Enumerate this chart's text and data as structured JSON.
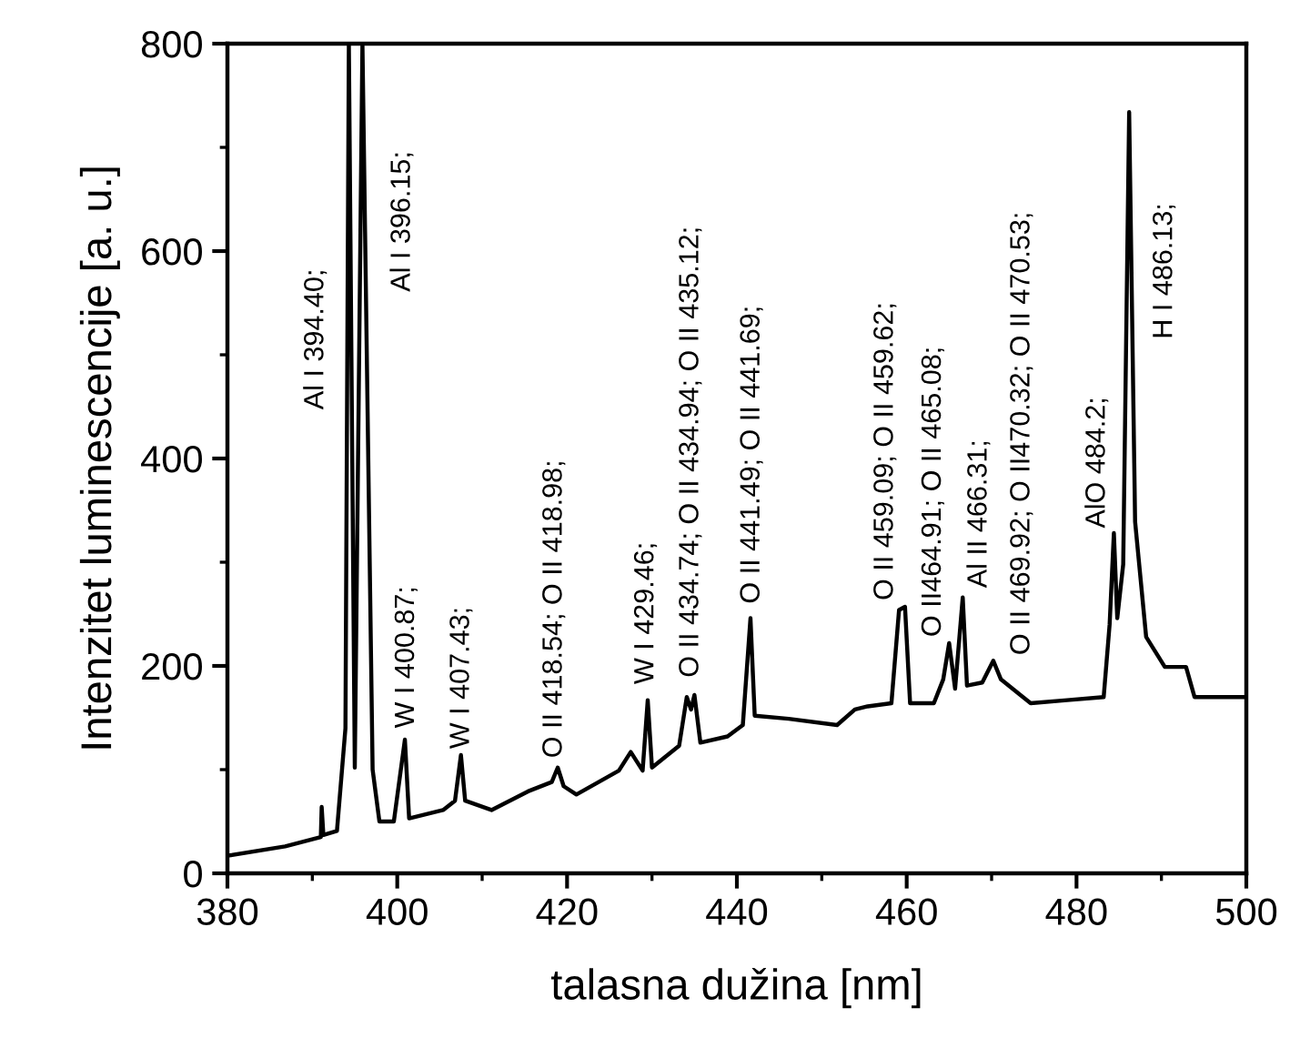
{
  "chart_data": {
    "type": "line",
    "xlabel": "talasna dužina [nm]",
    "ylabel": "Intenzitet luminescencije [a. u.]",
    "xlim": [
      380,
      500
    ],
    "xticks": [
      380,
      400,
      420,
      440,
      460,
      480,
      500
    ],
    "ylim": [
      0,
      800
    ],
    "yticks": [
      0,
      200,
      400,
      600,
      800
    ],
    "grid": false,
    "legend": false,
    "marker": "none",
    "line_style": "solid",
    "series": [
      {
        "color": "#000000",
        "x": [
          380,
          386.8,
          391.0,
          391.1,
          391.3,
          392.9,
          393.9,
          394.3,
          395.0,
          395.9,
          397.1,
          397.9,
          399.6,
          400.9,
          401.4,
          405.4,
          406.8,
          407.5,
          408.0,
          411.1,
          415.4,
          418.2,
          418.9,
          419.6,
          421.1,
          426.1,
          427.5,
          428.9,
          429.5,
          430.0,
          433.2,
          434.1,
          434.6,
          435.0,
          435.7,
          438.9,
          440.7,
          441.6,
          442.1,
          446.1,
          451.8,
          453.9,
          455.4,
          458.2,
          459.1,
          459.8,
          460.4,
          463.2,
          464.3,
          465.0,
          465.7,
          466.6,
          467.1,
          468.9,
          470.2,
          471.1,
          474.6,
          478.9,
          483.2,
          483.9,
          484.4,
          484.8,
          485.5,
          486.2,
          486.9,
          488.2,
          490.4,
          492.9,
          493.9,
          500
        ],
        "values": [
          17,
          26,
          35,
          64,
          37,
          41,
          140,
          800,
          102,
          800,
          100,
          50,
          50,
          129,
          53,
          61,
          70,
          114,
          70,
          61,
          79,
          88,
          102,
          84,
          76,
          99,
          117,
          99,
          167,
          102,
          123,
          170,
          158,
          172,
          126,
          132,
          143,
          246,
          152,
          149,
          143,
          158,
          161,
          164,
          254,
          257,
          164,
          164,
          187,
          222,
          178,
          266,
          181,
          184,
          205,
          187,
          164,
          167,
          170,
          240,
          328,
          246,
          298,
          734,
          339,
          228,
          199,
          199,
          170,
          170
        ]
      }
    ],
    "annotations": [
      "Al I 394.40;",
      "Al I 396.15;",
      "W I 400.87;",
      "W I 407.43;",
      "O II 418.54; O II 418.98;",
      "W I 429.46;",
      "O II 434.74; O II 434.94; O II 435.12;",
      "O II 441.49; O II 441.69;",
      "O II 459.09; O II 459.62;",
      "O II464.91; O II 465.08;",
      "Al II 466.31;",
      "O II 469.92; O II470.32; O II 470.53;",
      "AlO 484.2;",
      "H I 486.13;"
    ]
  }
}
